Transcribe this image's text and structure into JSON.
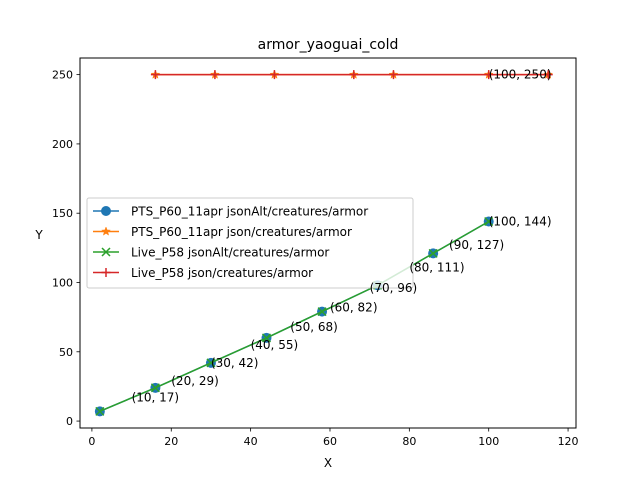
{
  "chart_data": {
    "type": "line",
    "title": "armor_yaoguai_cold",
    "xlabel": "X",
    "ylabel": "Y",
    "xlim": [
      -3,
      122
    ],
    "ylim": [
      -5,
      262
    ],
    "xticks": [
      0,
      20,
      40,
      60,
      80,
      100,
      120
    ],
    "yticks": [
      0,
      50,
      100,
      150,
      200,
      250
    ],
    "grid": false,
    "legend_position": "center-left",
    "series": [
      {
        "name": "PTS_P60_11apr jsonAlt/creatures/armor",
        "color": "#1f77b4",
        "marker": "circle",
        "x": [
          2,
          16,
          30,
          44,
          58,
          72,
          86,
          100
        ],
        "y": [
          7,
          24,
          42,
          60,
          79,
          98,
          121,
          144
        ]
      },
      {
        "name": "PTS_P60_11apr json/creatures/armor",
        "color": "#ff7f0e",
        "marker": "star",
        "x": [
          16,
          31,
          46,
          66,
          76,
          100,
          115
        ],
        "y": [
          250,
          250,
          250,
          250,
          250,
          250,
          250
        ]
      },
      {
        "name": "Live_P58 jsonAlt/creatures/armor",
        "color": "#2ca02c",
        "marker": "x",
        "x": [
          2,
          16,
          30,
          44,
          58,
          72,
          86,
          100
        ],
        "y": [
          7,
          24,
          42,
          60,
          79,
          98,
          121,
          144
        ]
      },
      {
        "name": "Live_P58 json/creatures/armor",
        "color": "#d62728",
        "marker": "plus",
        "x": [
          16,
          31,
          46,
          66,
          76,
          100,
          115
        ],
        "y": [
          250,
          250,
          250,
          250,
          250,
          250,
          250
        ]
      }
    ],
    "annotations": [
      {
        "text": "(10, 17)",
        "x": 10,
        "y": 17
      },
      {
        "text": "(20, 29)",
        "x": 20,
        "y": 29
      },
      {
        "text": "(30, 42)",
        "x": 30,
        "y": 42
      },
      {
        "text": "(40, 55)",
        "x": 40,
        "y": 55
      },
      {
        "text": "(50, 68)",
        "x": 50,
        "y": 68
      },
      {
        "text": "(60, 82)",
        "x": 60,
        "y": 82
      },
      {
        "text": "(70, 96)",
        "x": 70,
        "y": 96
      },
      {
        "text": "(80, 111)",
        "x": 80,
        "y": 111
      },
      {
        "text": "(90, 127)",
        "x": 90,
        "y": 127
      },
      {
        "text": "(100, 144)",
        "x": 100,
        "y": 144
      },
      {
        "text": "(100, 250)",
        "x": 100,
        "y": 250
      }
    ]
  }
}
